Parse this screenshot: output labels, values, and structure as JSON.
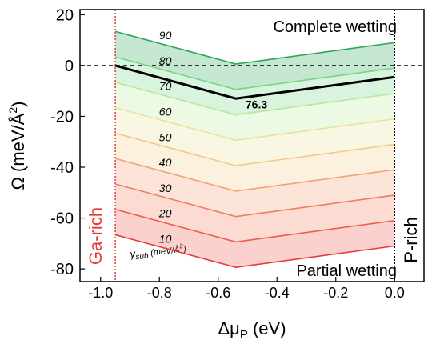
{
  "chart_data": {
    "type": "line",
    "x_label": [
      "Δμ",
      "P",
      " (eV)"
    ],
    "y_label": [
      "Ω (meV/Å",
      "2",
      ")"
    ],
    "series_label": [
      "γ",
      "sub",
      " (meV/Å",
      "2",
      ")"
    ],
    "x": [
      -0.95,
      -0.54,
      0
    ],
    "series": [
      {
        "name": "10",
        "color": "#e8393a",
        "values": [
          -66.6,
          -79.4,
          -71
        ]
      },
      {
        "name": "20",
        "color": "#ee5a4c",
        "values": [
          -56.6,
          -69.4,
          -61
        ]
      },
      {
        "name": "30",
        "color": "#f07c5e",
        "values": [
          -46.6,
          -59.4,
          -51
        ]
      },
      {
        "name": "40",
        "color": "#f4a273",
        "values": [
          -36.6,
          -49.4,
          -41
        ]
      },
      {
        "name": "50",
        "color": "#f5c887",
        "values": [
          -26.6,
          -39.4,
          -31
        ]
      },
      {
        "name": "60",
        "color": "#e8e29a",
        "values": [
          -16.6,
          -29.4,
          -21
        ]
      },
      {
        "name": "70",
        "color": "#b9e899",
        "values": [
          -6.6,
          -19.4,
          -11
        ]
      },
      {
        "name": "80",
        "color": "#74d487",
        "values": [
          3.4,
          -9.4,
          -1
        ]
      },
      {
        "name": "90",
        "color": "#2ea75a",
        "values": [
          13.4,
          0.6,
          9
        ]
      },
      {
        "name": "76.3",
        "color": "#000000",
        "values": [
          0,
          -13,
          -4.5
        ]
      }
    ],
    "annotations": {
      "complete": "Complete wetting",
      "partial": "Partial wetting",
      "ga_rich": "Ga-rich",
      "p_rich": "P-rich"
    },
    "vlines": [
      {
        "x": -0.95,
        "color": "#e8393a"
      },
      {
        "x": 0,
        "color": "#000000"
      }
    ],
    "hline": 0,
    "xlim": [
      -1.07,
      0.1
    ],
    "ylim": [
      -85,
      22
    ],
    "xticks": [
      {
        "value": -1.0,
        "label": "-1.0"
      },
      -0.8,
      -0.6,
      -0.4,
      -0.2,
      {
        "value": 0.0,
        "label": "0.0"
      }
    ],
    "yticks": [
      20,
      0,
      -20,
      -40,
      -60,
      -80
    ]
  }
}
